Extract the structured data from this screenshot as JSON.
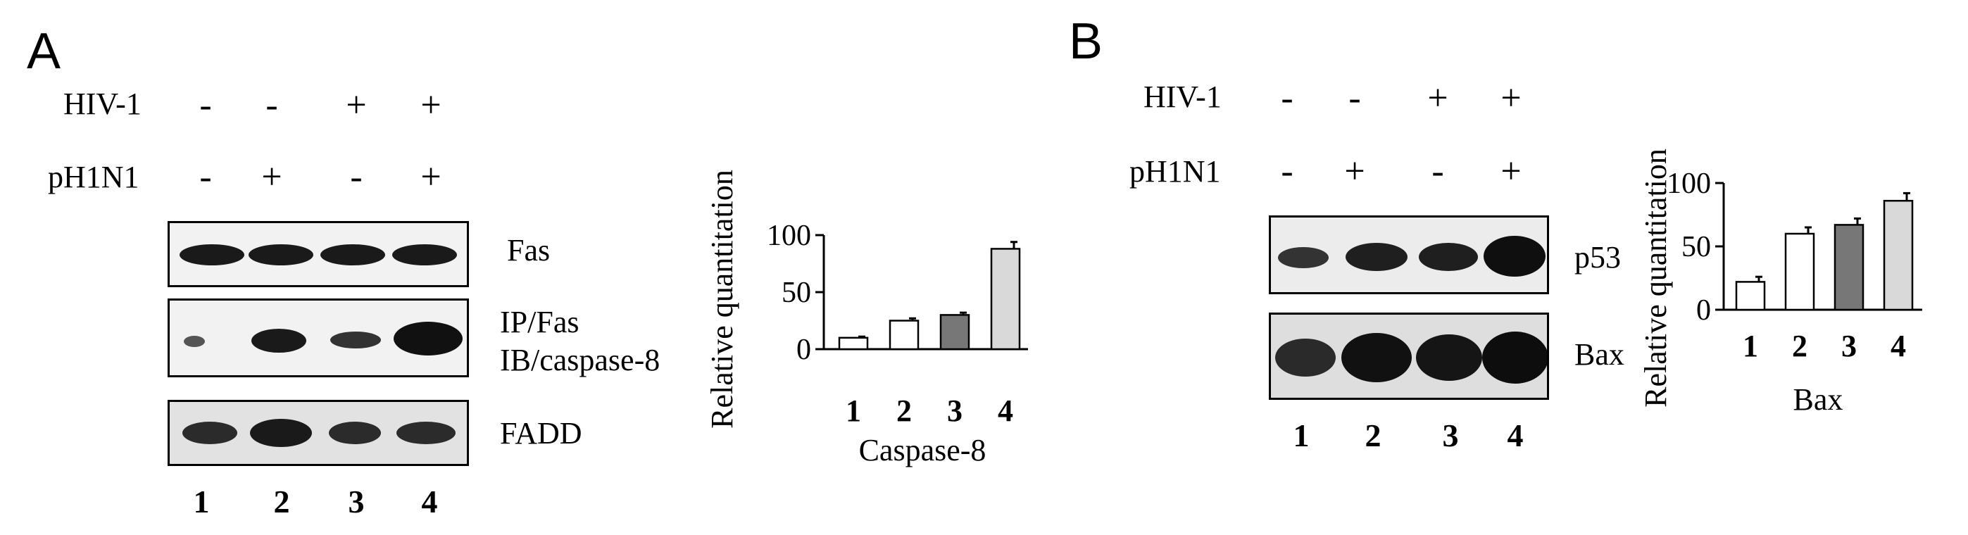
{
  "panels": [
    {
      "letter": "A",
      "conditions": [
        {
          "label": "HIV-1",
          "signs": [
            "-",
            "-",
            "+",
            "+"
          ]
        },
        {
          "label": "pH1N1",
          "signs": [
            "-",
            "+",
            "-",
            "+"
          ]
        }
      ],
      "blots": [
        {
          "label": "Fas"
        },
        {
          "label": "IP/Fas",
          "label2": "IB/caspase-8"
        },
        {
          "label": "FADD"
        }
      ],
      "lanes": [
        "1",
        "2",
        "3",
        "4"
      ]
    },
    {
      "letter": "B",
      "conditions": [
        {
          "label": "HIV-1",
          "signs": [
            "-",
            "-",
            "+",
            "+"
          ]
        },
        {
          "label": "pH1N1",
          "signs": [
            "-",
            "+",
            "-",
            "+"
          ]
        }
      ],
      "blots": [
        {
          "label": "p53"
        },
        {
          "label": "Bax"
        }
      ],
      "lanes": [
        "1",
        "2",
        "3",
        "4"
      ]
    }
  ],
  "chart_data": [
    {
      "type": "bar",
      "categories": [
        "1",
        "2",
        "3",
        "4"
      ],
      "values": [
        10,
        25,
        30,
        88
      ],
      "errors": [
        1,
        2,
        2,
        6
      ],
      "bar_colors": [
        "#ffffff",
        "#ffffff",
        "#777777",
        "#d9d9d9"
      ],
      "title": "",
      "xlabel": "Caspase-8",
      "ylabel": "Relative   quantitation",
      "ylim": [
        0,
        100
      ],
      "yticks": [
        "0",
        "50",
        "100"
      ]
    },
    {
      "type": "bar",
      "categories": [
        "1",
        "2",
        "3",
        "4"
      ],
      "values": [
        22,
        60,
        67,
        86
      ],
      "errors": [
        4,
        5,
        5,
        6
      ],
      "bar_colors": [
        "#ffffff",
        "#ffffff",
        "#777777",
        "#d9d9d9"
      ],
      "title": "",
      "xlabel": "Bax",
      "ylabel": "Relative   quantitation",
      "ylim": [
        0,
        100
      ],
      "yticks": [
        "0",
        "50",
        "100"
      ]
    }
  ]
}
